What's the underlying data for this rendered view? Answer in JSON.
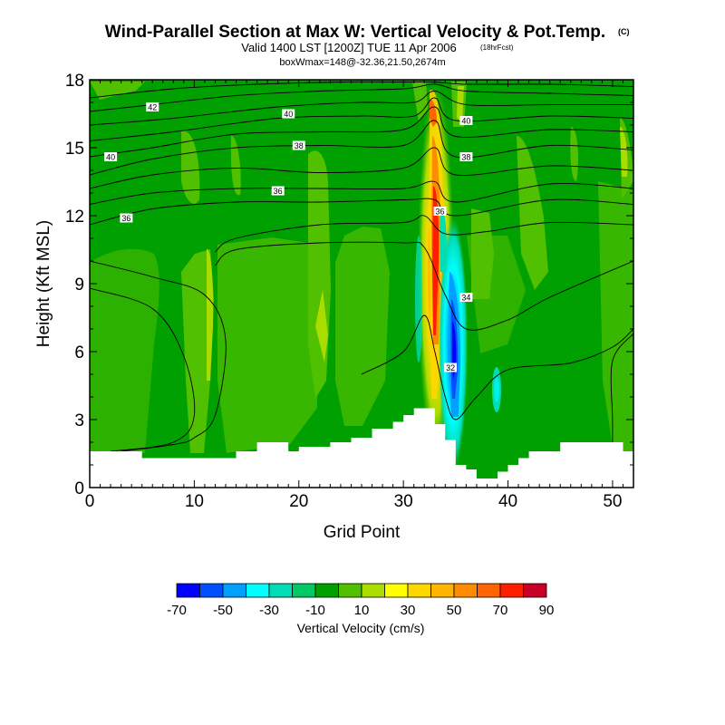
{
  "chart_data": {
    "type": "heatmap",
    "title": "Wind-Parallel Section at Max W: Vertical Velocity & Pot.Temp.",
    "copyright": "(C)",
    "subtitle": "Valid 1400 LST [1200Z] TUE 11 Apr 2006",
    "forecast_hour": "(18hrFcst)",
    "box_info": "boxWmax=148@-32.36,21.50,2674m",
    "xlabel": "Grid Point",
    "ylabel": "Height (Kft MSL)",
    "xlim": [
      0,
      52
    ],
    "ylim": [
      0,
      18
    ],
    "x_ticks": [
      0,
      10,
      20,
      30,
      40,
      50
    ],
    "y_ticks": [
      0,
      3,
      6,
      9,
      12,
      15,
      18
    ],
    "colorbar": {
      "label": "Vertical Velocity (cm/s)",
      "tick_labels": [
        "-70",
        "-50",
        "-30",
        "-10",
        "10",
        "30",
        "50",
        "70",
        "90"
      ],
      "colors": [
        "#0000ff",
        "#0050ff",
        "#00a0ff",
        "#00ffff",
        "#00dcb4",
        "#00c864",
        "#00a000",
        "#50c000",
        "#aadc00",
        "#ffff00",
        "#ffd700",
        "#ffb400",
        "#ff8c00",
        "#ff6400",
        "#ff1e00",
        "#c80028"
      ]
    },
    "terrain": [
      [
        0,
        1.6
      ],
      [
        5,
        1.6
      ],
      [
        5,
        1.3
      ],
      [
        14,
        1.3
      ],
      [
        14,
        1.6
      ],
      [
        16,
        1.6
      ],
      [
        16,
        2.0
      ],
      [
        19,
        2.0
      ],
      [
        19,
        1.6
      ],
      [
        20,
        1.6
      ],
      [
        20,
        1.8
      ],
      [
        23,
        1.8
      ],
      [
        23,
        2.0
      ],
      [
        25,
        2.0
      ],
      [
        25,
        2.2
      ],
      [
        27,
        2.2
      ],
      [
        27,
        2.6
      ],
      [
        29,
        2.6
      ],
      [
        29,
        2.9
      ],
      [
        30,
        2.9
      ],
      [
        30,
        3.2
      ],
      [
        31,
        3.2
      ],
      [
        31,
        3.5
      ],
      [
        33,
        3.5
      ],
      [
        33,
        2.8
      ],
      [
        34,
        2.8
      ],
      [
        34,
        2.1
      ],
      [
        35,
        2.1
      ],
      [
        35,
        1.0
      ],
      [
        36,
        1.0
      ],
      [
        36,
        0.8
      ],
      [
        37,
        0.8
      ],
      [
        37,
        0.4
      ],
      [
        39,
        0.4
      ],
      [
        39,
        0.7
      ],
      [
        40,
        0.7
      ],
      [
        40,
        1.0
      ],
      [
        41,
        1.0
      ],
      [
        41,
        1.3
      ],
      [
        42,
        1.3
      ],
      [
        42,
        1.6
      ],
      [
        45,
        1.6
      ],
      [
        45,
        2.0
      ],
      [
        51,
        2.0
      ],
      [
        51,
        1.6
      ],
      [
        52,
        1.6
      ]
    ],
    "theta_contours": [
      {
        "label": "42",
        "points": [
          [
            0,
            17.2
          ],
          [
            8,
            17.6
          ],
          [
            16,
            17.8
          ],
          [
            24,
            17.9
          ],
          [
            30,
            17.9
          ],
          [
            33,
            17.9
          ],
          [
            36,
            17.8
          ],
          [
            44,
            17.8
          ],
          [
            52,
            17.7
          ]
        ]
      },
      {
        "label": "42",
        "points": [
          [
            0,
            16.6
          ],
          [
            6,
            16.9
          ],
          [
            14,
            17.3
          ],
          [
            22,
            17.5
          ],
          [
            30,
            17.6
          ],
          [
            33,
            17.8
          ],
          [
            36,
            17.5
          ],
          [
            44,
            17.4
          ],
          [
            52,
            17.3
          ]
        ]
      },
      {
        "label": "40",
        "points": [
          [
            0,
            16.0
          ],
          [
            8,
            16.3
          ],
          [
            18,
            16.8
          ],
          [
            26,
            17.0
          ],
          [
            31,
            17.0
          ],
          [
            33,
            17.5
          ],
          [
            36,
            16.9
          ],
          [
            44,
            16.9
          ],
          [
            52,
            16.9
          ]
        ]
      },
      {
        "label": "40",
        "points": [
          [
            0,
            15.3
          ],
          [
            8,
            15.7
          ],
          [
            18,
            16.3
          ],
          [
            26,
            16.4
          ],
          [
            31,
            16.4
          ],
          [
            33,
            17.2
          ],
          [
            35,
            16.2
          ],
          [
            44,
            16.4
          ],
          [
            52,
            16.3
          ]
        ]
      },
      {
        "label": "38",
        "points": [
          [
            0,
            14.6
          ],
          [
            6,
            15.0
          ],
          [
            14,
            15.6
          ],
          [
            22,
            15.7
          ],
          [
            30,
            15.8
          ],
          [
            33,
            16.8
          ],
          [
            35,
            15.5
          ],
          [
            44,
            15.8
          ],
          [
            52,
            15.7
          ]
        ]
      },
      {
        "label": "38",
        "points": [
          [
            0,
            13.8
          ],
          [
            6,
            14.5
          ],
          [
            14,
            15.0
          ],
          [
            22,
            15.1
          ],
          [
            30,
            15.1
          ],
          [
            33,
            16.2
          ],
          [
            35,
            14.6
          ],
          [
            44,
            15.1
          ],
          [
            52,
            14.9
          ]
        ]
      },
      {
        "label": "36",
        "points": [
          [
            0,
            13.2
          ],
          [
            6,
            13.8
          ],
          [
            14,
            14.1
          ],
          [
            22,
            13.9
          ],
          [
            30,
            14.1
          ],
          [
            33,
            15.0
          ],
          [
            35,
            13.8
          ],
          [
            44,
            14.2
          ],
          [
            52,
            14.0
          ]
        ]
      },
      {
        "label": "36",
        "points": [
          [
            0,
            12.5
          ],
          [
            6,
            13.0
          ],
          [
            14,
            13.2
          ],
          [
            22,
            13.2
          ],
          [
            30,
            13.2
          ],
          [
            33,
            13.5
          ],
          [
            35,
            12.6
          ],
          [
            44,
            13.4
          ],
          [
            52,
            13.2
          ]
        ]
      },
      {
        "label": "36",
        "points": [
          [
            0,
            11.6
          ],
          [
            6,
            12.3
          ],
          [
            14,
            12.6
          ],
          [
            22,
            12.6
          ],
          [
            30,
            12.7
          ],
          [
            33,
            12.7
          ],
          [
            35,
            12.0
          ],
          [
            44,
            12.7
          ],
          [
            52,
            12.5
          ]
        ]
      },
      {
        "label": "36",
        "points": [
          [
            12,
            10.4
          ],
          [
            14,
            11.0
          ],
          [
            22,
            11.6
          ],
          [
            30,
            11.7
          ],
          [
            32,
            12.0
          ],
          [
            34,
            11.2
          ],
          [
            38,
            11.3
          ],
          [
            44,
            11.7
          ],
          [
            52,
            11.6
          ]
        ]
      },
      {
        "label": "34",
        "points": [
          [
            0,
            10.0
          ],
          [
            6,
            9.3
          ],
          [
            11,
            8.5
          ],
          [
            13,
            6.5
          ],
          [
            12,
            3.2
          ],
          [
            10,
            2.2
          ],
          [
            8,
            1.9
          ],
          [
            3,
            1.6
          ]
        ]
      },
      {
        "label": "34",
        "points": [
          [
            12,
            9.8
          ],
          [
            14,
            10.5
          ],
          [
            22,
            10.8
          ],
          [
            30,
            10.8
          ],
          [
            32,
            10.6
          ],
          [
            34,
            8.5
          ],
          [
            36,
            7.0
          ],
          [
            40,
            7.4
          ],
          [
            44,
            8.4
          ],
          [
            52,
            10.0
          ]
        ]
      },
      {
        "label": "34",
        "points": [
          [
            0,
            8.8
          ],
          [
            6,
            7.9
          ],
          [
            9,
            5.8
          ],
          [
            10,
            3.2
          ],
          [
            8,
            2.0
          ],
          [
            2,
            1.6
          ]
        ]
      },
      {
        "label": "32",
        "points": [
          [
            26,
            5.0
          ],
          [
            30,
            6.0
          ],
          [
            32,
            7.6
          ],
          [
            33,
            6.0
          ],
          [
            34,
            4.0
          ],
          [
            35,
            3.0
          ],
          [
            37,
            4.0
          ],
          [
            40,
            5.2
          ],
          [
            46,
            5.5
          ],
          [
            50,
            6.2
          ],
          [
            52,
            7.0
          ]
        ]
      },
      {
        "label": "32",
        "points": [
          [
            52,
            6.8
          ],
          [
            50,
            5.6
          ],
          [
            50,
            3.0
          ],
          [
            50,
            2.0
          ]
        ]
      }
    ],
    "contour_labels": [
      {
        "label": "42",
        "x": 6,
        "y": 16.8
      },
      {
        "label": "40",
        "x": 19,
        "y": 16.5
      },
      {
        "label": "40",
        "x": 2,
        "y": 14.6
      },
      {
        "label": "38",
        "x": 20,
        "y": 15.1
      },
      {
        "label": "36",
        "x": 18,
        "y": 13.1
      },
      {
        "label": "36",
        "x": 3.5,
        "y": 11.9
      },
      {
        "label": "40",
        "x": 36,
        "y": 16.2
      },
      {
        "label": "38",
        "x": 36,
        "y": 14.6
      },
      {
        "label": "36",
        "x": 33.5,
        "y": 12.2
      },
      {
        "label": "34",
        "x": 36,
        "y": 8.4
      },
      {
        "label": "32",
        "x": 34.5,
        "y": 5.3
      }
    ]
  }
}
